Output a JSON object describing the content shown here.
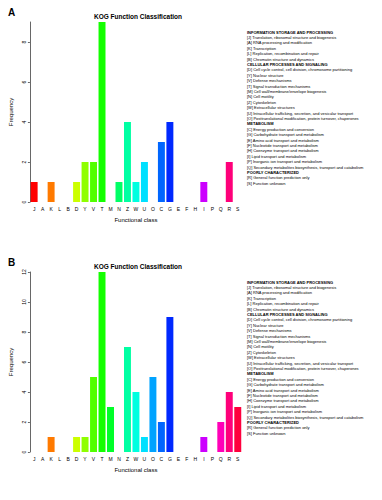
{
  "chart_data": [
    {
      "type": "bar",
      "label": "A",
      "title": "KOG Function Classification",
      "x_label": "Functional class",
      "y_label": "Frequency",
      "categories": [
        "J",
        "A",
        "K",
        "L",
        "B",
        "D",
        "Y",
        "V",
        "T",
        "M",
        "N",
        "Z",
        "W",
        "U",
        "O",
        "C",
        "G",
        "E",
        "F",
        "H",
        "I",
        "P",
        "Q",
        "R",
        "S"
      ],
      "values": [
        1,
        0,
        1,
        0,
        0,
        1,
        2,
        2,
        9,
        0,
        1,
        4,
        1,
        2,
        0,
        3,
        4,
        0,
        0,
        0,
        1,
        0,
        0,
        2,
        0
      ],
      "colors": [
        "#FF0000",
        "#FF3D00",
        "#FF7A00",
        "#FFB800",
        "#FFF500",
        "#CCFF00",
        "#8FFF00",
        "#52FF00",
        "#14FF00",
        "#00FF29",
        "#00FF66",
        "#00FFA3",
        "#00FFE0",
        "#00E0FF",
        "#00A3FF",
        "#0066FF",
        "#0029FF",
        "#1400FF",
        "#5200FF",
        "#8F00FF",
        "#CC00FF",
        "#FF00F5",
        "#FF00B8",
        "#FF007A",
        "#FF003D"
      ],
      "ylim": [
        0,
        9
      ],
      "yticks": [
        0,
        2,
        4,
        6,
        8
      ],
      "grid": false,
      "class_groups": [
        {
          "heading": "INFORMATION STORAGE AND PROCESSING",
          "items": [
            "[J] Translation, ribosomal structure and biogenesis",
            "[A] RNA processing and modification",
            "[K] Transcription",
            "[L] Replication, recombination and repair",
            "[B] Chromatin structure and dynamics"
          ]
        },
        {
          "heading": "CELLULAR PROCESSES AND SIGNALING",
          "items": [
            "[D] Cell cycle control, cell division, chromosome partitioning",
            "[Y] Nuclear structure",
            "[V] Defense mechanisms",
            "[T] Signal transduction mechanisms",
            "[M] Cell wall/membrane/envelope biogenesis",
            "[N] Cell motility",
            "[Z] Cytoskeleton",
            "[W] Extracellular structures",
            "[U] Intracellular trafficking, secretion, and vesicular transport",
            "[O] Posttranslational modification, protein turnover, chaperones"
          ]
        },
        {
          "heading": "METABOLISM",
          "items": [
            "[C] Energy production and conversion",
            "[G] Carbohydrate transport and metabolism",
            "[E] Amino acid transport and metabolism",
            "[F] Nucleotide transport and metabolism",
            "[H] Coenzyme transport and metabolism",
            "[I] Lipid transport and metabolism",
            "[P] Inorganic ion transport and metabolism",
            "[Q] Secondary metabolites biosynthesis, transport and catabolism"
          ]
        },
        {
          "heading": "POORLY CHARACTERIZED",
          "items": [
            "[R] General function prediction only",
            "[S] Function unknown"
          ]
        }
      ]
    },
    {
      "type": "bar",
      "label": "B",
      "title": "KOG Function Classification",
      "x_label": "Functional class",
      "y_label": "Frequency",
      "categories": [
        "J",
        "A",
        "K",
        "L",
        "B",
        "D",
        "Y",
        "V",
        "T",
        "M",
        "N",
        "Z",
        "W",
        "U",
        "O",
        "C",
        "G",
        "E",
        "F",
        "H",
        "I",
        "P",
        "Q",
        "R",
        "S"
      ],
      "values": [
        0,
        0,
        1,
        0,
        0,
        1,
        1,
        5,
        12,
        3,
        0,
        7,
        4,
        1,
        5,
        2,
        9,
        0,
        0,
        0,
        1,
        0,
        2,
        4,
        3
      ],
      "colors": [
        "#FF0000",
        "#FF3D00",
        "#FF7A00",
        "#FFB800",
        "#FFF500",
        "#CCFF00",
        "#8FFF00",
        "#52FF00",
        "#14FF00",
        "#00FF29",
        "#00FF66",
        "#00FFA3",
        "#00FFE0",
        "#00E0FF",
        "#00A3FF",
        "#0066FF",
        "#0029FF",
        "#1400FF",
        "#5200FF",
        "#8F00FF",
        "#CC00FF",
        "#FF00F5",
        "#FF00B8",
        "#FF007A",
        "#FF003D"
      ],
      "ylim": [
        0,
        12
      ],
      "yticks": [
        0,
        2,
        4,
        6,
        8,
        10,
        12
      ],
      "grid": false,
      "class_groups": [
        {
          "heading": "INFORMATION STORAGE AND PROCESSING",
          "items": [
            "[J] Translation, ribosomal structure and biogenesis",
            "[A] RNA processing and modification",
            "[K] Transcription",
            "[L] Replication, recombination and repair",
            "[B] Chromatin structure and dynamics"
          ]
        },
        {
          "heading": "CELLULAR PROCESSES AND SIGNALING",
          "items": [
            "[D] Cell cycle control, cell division, chromosome partitioning",
            "[Y] Nuclear structure",
            "[V] Defense mechanisms",
            "[T] Signal transduction mechanisms",
            "[M] Cell wall/membrane/envelope biogenesis",
            "[N] Cell motility",
            "[Z] Cytoskeleton",
            "[W] Extracellular structures",
            "[U] Intracellular trafficking, secretion, and vesicular transport",
            "[O] Posttranslational modification, protein turnover, chaperones"
          ]
        },
        {
          "heading": "METABOLISM",
          "items": [
            "[C] Energy production and conversion",
            "[G] Carbohydrate transport and metabolism",
            "[E] Amino acid transport and metabolism",
            "[F] Nucleotide transport and metabolism",
            "[H] Coenzyme transport and metabolism",
            "[I] Lipid transport and metabolism",
            "[P] Inorganic ion transport and metabolism",
            "[Q] Secondary metabolites biosynthesis, transport and catabolism"
          ]
        },
        {
          "heading": "POORLY CHARACTERIZED",
          "items": [
            "[R] General function prediction only",
            "[S] Function unknown"
          ]
        }
      ]
    }
  ]
}
